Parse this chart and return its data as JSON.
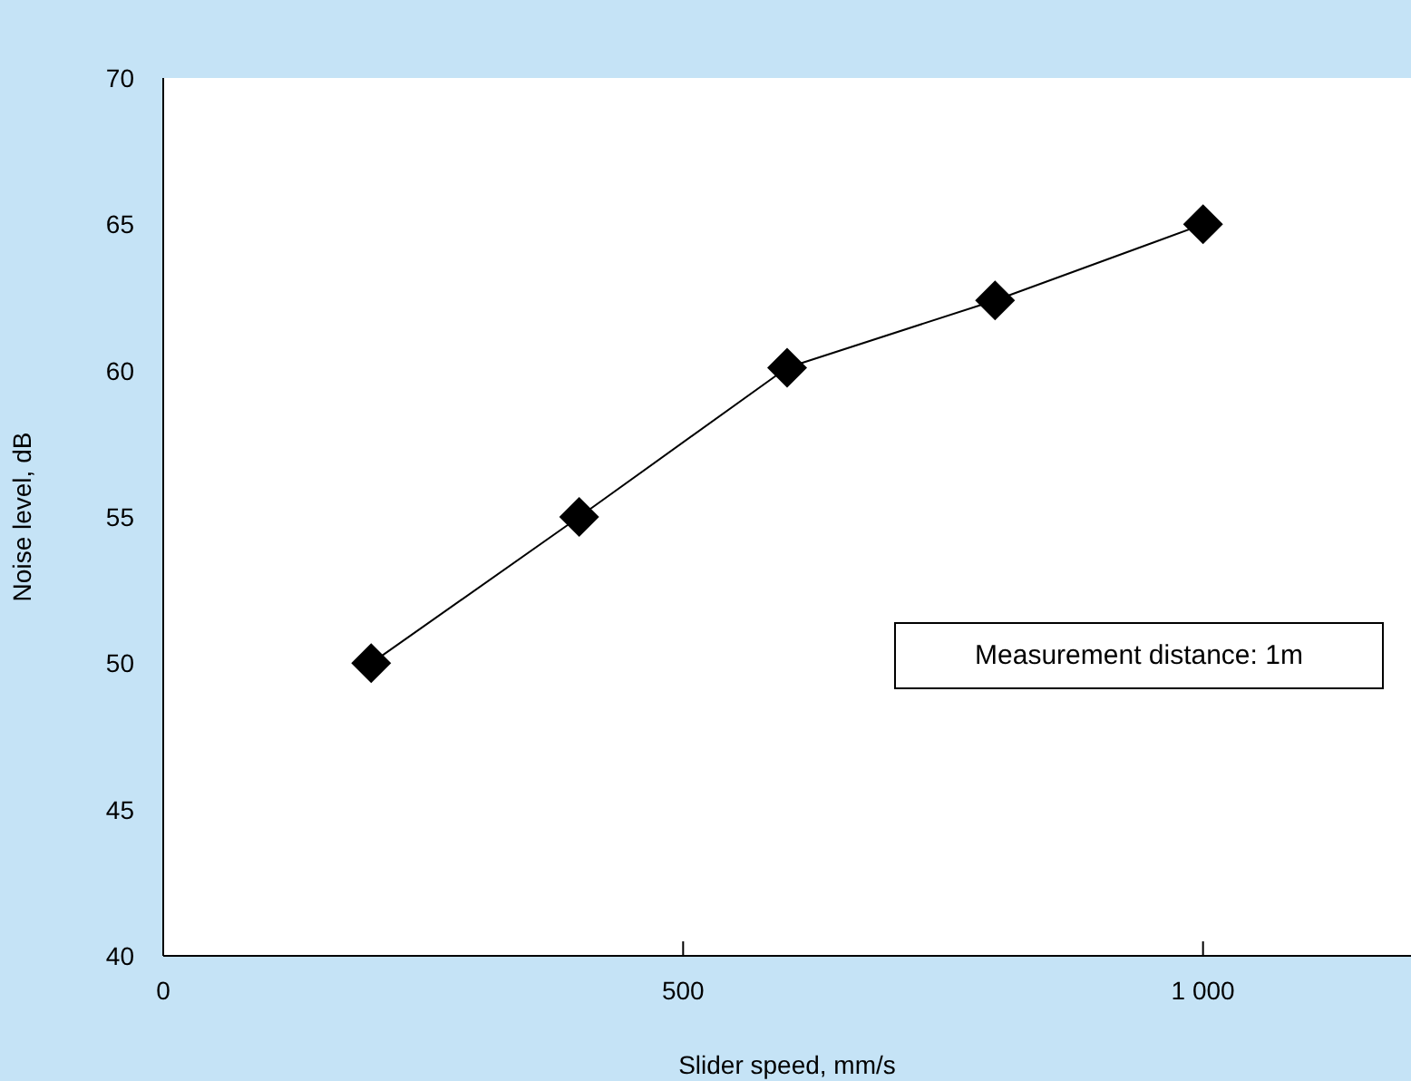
{
  "chart_data": {
    "type": "line",
    "xlabel": "Slider speed, mm/s",
    "ylabel": "Noise level, dB",
    "x": [
      200,
      400,
      600,
      800,
      1000
    ],
    "series": [
      {
        "color": "#000000",
        "values": [
          50,
          55,
          60.1,
          62.4,
          65
        ]
      }
    ],
    "xlim": [
      0,
      1200
    ],
    "xticks": [
      0,
      500,
      {
        "value": 1000,
        "label": "1 000"
      }
    ],
    "ylim": [
      40,
      70
    ],
    "yticks": [
      40,
      45,
      50,
      55,
      60,
      65,
      70
    ],
    "grid": false,
    "legend": false,
    "marker": "diamond",
    "line_style": "solid",
    "annotations": [
      "Measurement distance: 1m"
    ]
  }
}
